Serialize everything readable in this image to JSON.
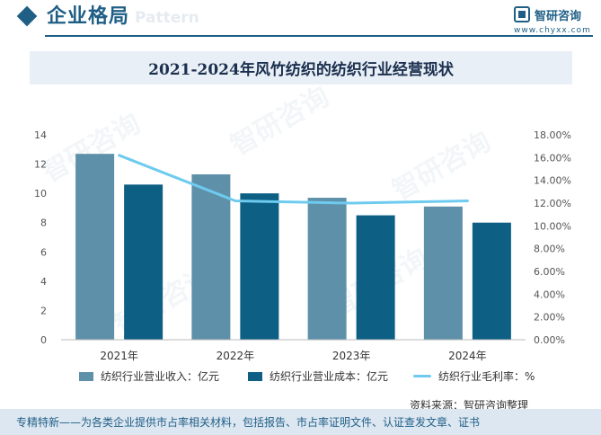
{
  "header": {
    "section_title": "企业格局",
    "watermark_text": "Pattern",
    "brand_name": "智研咨询",
    "brand_url": "www.chyxx.com"
  },
  "watermark": {
    "text": "智研咨询"
  },
  "chart_data": {
    "type": "bar",
    "title": "2021-2024年风竹纺织的纺织行业经营现状",
    "categories": [
      "2021年",
      "2022年",
      "2023年",
      "2024年"
    ],
    "series": [
      {
        "name": "纺织行业营业收入：亿元",
        "type": "bar",
        "axis": "left",
        "color": "#5e91a9",
        "values": [
          12.7,
          11.3,
          9.7,
          9.1
        ]
      },
      {
        "name": "纺织行业营业成本：亿元",
        "type": "bar",
        "axis": "left",
        "color": "#0d5f84",
        "values": [
          10.6,
          10.0,
          8.5,
          8.0
        ]
      },
      {
        "name": "纺织行业毛利率：%",
        "type": "line",
        "axis": "right",
        "color": "#6ecbef",
        "values": [
          16.2,
          12.2,
          12.0,
          12.2
        ]
      }
    ],
    "ylim_left": [
      0,
      14
    ],
    "yticks_left": [
      "0",
      "2",
      "4",
      "6",
      "8",
      "10",
      "12",
      "14"
    ],
    "ylim_right": [
      0,
      18
    ],
    "yticks_right": [
      "0.00%",
      "2.00%",
      "4.00%",
      "6.00%",
      "8.00%",
      "10.00%",
      "12.00%",
      "14.00%",
      "16.00%",
      "18.00%"
    ],
    "grid": false,
    "legend_position": "bottom"
  },
  "source": "资料来源：智研咨询整理",
  "footer": "专精特新——为各类企业提供市占率相关材料，包括报告、市占率证明文件、认证查发文章、证书"
}
